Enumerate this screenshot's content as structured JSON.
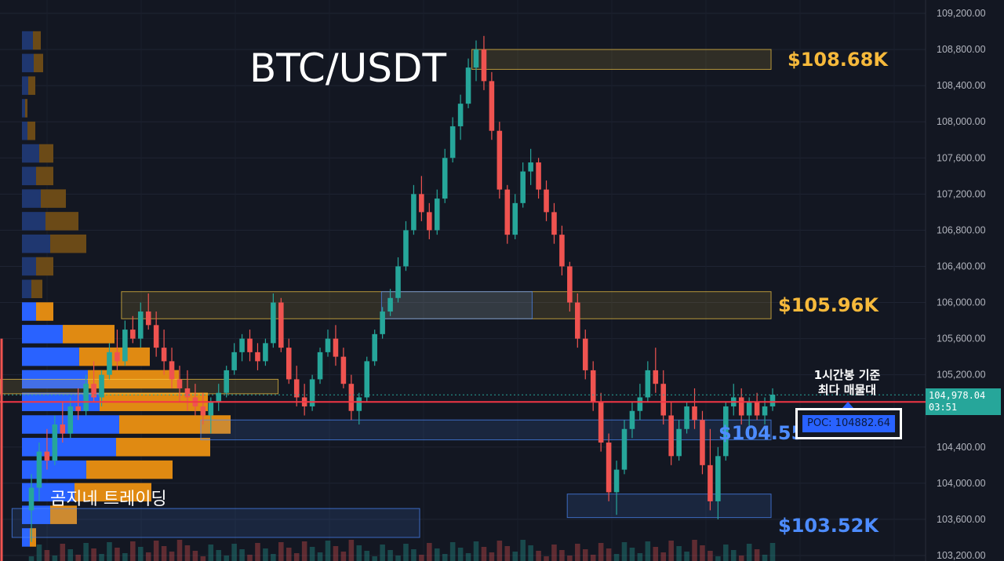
{
  "chart_data": {
    "type": "candlestick",
    "title": "BTC/USDT",
    "symbol": "BTC/USDT",
    "timeframe_note": "1시간봉 기준\n최다 매물대",
    "watermark": "곰지네 트레이딩",
    "y_axis": {
      "min": 103200,
      "max": 109200,
      "ticks": [
        "109,200.00",
        "108,800.00",
        "108,400.00",
        "108,000.00",
        "107,600.00",
        "107,200.00",
        "106,800.00",
        "106,400.00",
        "106,000.00",
        "105,600.00",
        "105,200.00",
        "104,400.00",
        "104,000.00",
        "103,600.00",
        "103,200.00"
      ],
      "tick_values": [
        109200,
        108800,
        108400,
        108000,
        107600,
        107200,
        106800,
        106400,
        106000,
        105600,
        105200,
        104400,
        104000,
        103600,
        103200
      ]
    },
    "current_price": {
      "value": 104978.04,
      "label": "104,978.04",
      "countdown": "03:51",
      "color": "#26a69a"
    },
    "red_line_price": 104900,
    "poc": {
      "label": "POC: 104882.64",
      "value": 104882.64
    },
    "levels": [
      {
        "label": "$108.68K",
        "value": 108680,
        "color": "#f6b93b"
      },
      {
        "label": "$105.96K",
        "value": 105960,
        "color": "#f6b93b"
      },
      {
        "label": "$104.55K",
        "value": 104550,
        "color": "#4d8cff"
      },
      {
        "label": "$103.52K",
        "value": 103520,
        "color": "#4d8cff"
      }
    ],
    "zones": [
      {
        "kind": "supply",
        "top": 108800,
        "bottom": 108580,
        "x_start": 0.47,
        "x_end": 0.768,
        "color": "#f6c945"
      },
      {
        "kind": "supply",
        "top": 106120,
        "bottom": 105820,
        "x_start": 0.121,
        "x_end": 0.768,
        "color": "#f6c945"
      },
      {
        "kind": "demand",
        "top": 106120,
        "bottom": 105820,
        "x_start": 0.38,
        "x_end": 0.53,
        "color": "#4d8cff"
      },
      {
        "kind": "supply",
        "top": 105150,
        "bottom": 104990,
        "x_start": 0.0,
        "x_end": 0.277,
        "color": "#f6c945"
      },
      {
        "kind": "demand",
        "top": 104700,
        "bottom": 104480,
        "x_start": 0.2,
        "x_end": 0.768,
        "color": "#4d8cff"
      },
      {
        "kind": "demand",
        "top": 103880,
        "bottom": 103620,
        "x_start": 0.565,
        "x_end": 0.768,
        "color": "#4d8cff"
      },
      {
        "kind": "demand",
        "top": 103720,
        "bottom": 103400,
        "x_start": 0.012,
        "x_end": 0.418,
        "color": "#4d8cff"
      }
    ],
    "volume_profile": [
      {
        "price": 108900,
        "up": 14,
        "down": 10
      },
      {
        "price": 108650,
        "up": 15,
        "down": 12
      },
      {
        "price": 108400,
        "up": 8,
        "down": 9
      },
      {
        "price": 108150,
        "up": 4,
        "down": 3
      },
      {
        "price": 107900,
        "up": 7,
        "down": 10
      },
      {
        "price": 107650,
        "up": 22,
        "down": 18
      },
      {
        "price": 107400,
        "up": 18,
        "down": 22
      },
      {
        "price": 107150,
        "up": 24,
        "down": 32
      },
      {
        "price": 106900,
        "up": 30,
        "down": 42
      },
      {
        "price": 106650,
        "up": 36,
        "down": 46
      },
      {
        "price": 106400,
        "up": 18,
        "down": 22
      },
      {
        "price": 106150,
        "up": 12,
        "down": 14
      },
      {
        "price": 105900,
        "up": 18,
        "down": 22
      },
      {
        "price": 105650,
        "up": 52,
        "down": 66
      },
      {
        "price": 105400,
        "up": 73,
        "down": 90
      },
      {
        "price": 105150,
        "up": 84,
        "down": 116
      },
      {
        "price": 104900,
        "up": 99,
        "down": 138
      },
      {
        "price": 104650,
        "up": 124,
        "down": 142
      },
      {
        "price": 104400,
        "up": 120,
        "down": 120
      },
      {
        "price": 104150,
        "up": 82,
        "down": 110
      },
      {
        "price": 103900,
        "up": 67,
        "down": 98
      },
      {
        "price": 103650,
        "up": 36,
        "down": 34
      },
      {
        "price": 103400,
        "up": 10,
        "down": 8
      }
    ],
    "volume_profile_colors": {
      "up": "#2962ff",
      "down": "#e08a12",
      "up_faded": "#1f3770",
      "down_faded": "#6b4a17"
    },
    "candle_colors": {
      "up": "#26a69a",
      "down": "#ef5350"
    },
    "candles": [
      [
        103700,
        104100,
        103350,
        103950
      ],
      [
        103950,
        104450,
        103800,
        104350
      ],
      [
        104350,
        104600,
        104150,
        104250
      ],
      [
        104250,
        104750,
        104200,
        104650
      ],
      [
        104650,
        104900,
        104450,
        104550
      ],
      [
        104550,
        104950,
        104500,
        104850
      ],
      [
        104850,
        105050,
        104700,
        104800
      ],
      [
        104800,
        105200,
        104750,
        105100
      ],
      [
        105100,
        105350,
        104900,
        104950
      ],
      [
        104950,
        105250,
        104850,
        105200
      ],
      [
        105200,
        105550,
        105150,
        105450
      ],
      [
        105450,
        105700,
        105250,
        105350
      ],
      [
        105350,
        105800,
        105300,
        105700
      ],
      [
        105700,
        105850,
        105550,
        105600
      ],
      [
        105600,
        106000,
        105500,
        105900
      ],
      [
        105900,
        106100,
        105700,
        105750
      ],
      [
        105750,
        105900,
        105400,
        105500
      ],
      [
        105500,
        105700,
        105200,
        105350
      ],
      [
        105350,
        105500,
        105050,
        105150
      ],
      [
        105150,
        105300,
        104900,
        105050
      ],
      [
        105050,
        105250,
        104800,
        104950
      ],
      [
        104950,
        105100,
        104750,
        104850
      ],
      [
        104850,
        105000,
        104650,
        104750
      ],
      [
        104750,
        104950,
        104550,
        104900
      ],
      [
        104900,
        105100,
        104800,
        105000
      ],
      [
        105000,
        105300,
        104950,
        105250
      ],
      [
        105250,
        105550,
        105200,
        105450
      ],
      [
        105450,
        105650,
        105350,
        105600
      ],
      [
        105600,
        105700,
        105350,
        105450
      ],
      [
        105450,
        105550,
        105250,
        105350
      ],
      [
        105350,
        105600,
        105300,
        105550
      ],
      [
        105550,
        106100,
        105500,
        106000
      ],
      [
        106000,
        106050,
        105450,
        105500
      ],
      [
        105500,
        105600,
        105100,
        105150
      ],
      [
        105150,
        105300,
        104850,
        104950
      ],
      [
        104950,
        105100,
        104750,
        104850
      ],
      [
        104850,
        105200,
        104800,
        105150
      ],
      [
        105150,
        105500,
        105100,
        105450
      ],
      [
        105450,
        105700,
        105400,
        105600
      ],
      [
        105600,
        105750,
        105300,
        105400
      ],
      [
        105400,
        105500,
        105050,
        105100
      ],
      [
        105100,
        105200,
        104700,
        104800
      ],
      [
        104800,
        105000,
        104650,
        104950
      ],
      [
        104950,
        105400,
        104900,
        105350
      ],
      [
        105350,
        105700,
        105300,
        105650
      ],
      [
        105650,
        105950,
        105600,
        105900
      ],
      [
        105900,
        106150,
        105850,
        106050
      ],
      [
        106050,
        106500,
        106000,
        106400
      ],
      [
        106400,
        106900,
        106350,
        106800
      ],
      [
        106800,
        107300,
        106750,
        107200
      ],
      [
        107200,
        107400,
        106900,
        107000
      ],
      [
        107000,
        107100,
        106700,
        106800
      ],
      [
        106800,
        107250,
        106750,
        107150
      ],
      [
        107150,
        107700,
        107100,
        107600
      ],
      [
        107600,
        108050,
        107550,
        107950
      ],
      [
        107950,
        108300,
        107800,
        108200
      ],
      [
        108200,
        108700,
        108150,
        108600
      ],
      [
        108600,
        108900,
        108450,
        108800
      ],
      [
        108800,
        108950,
        108350,
        108450
      ],
      [
        108450,
        108550,
        107800,
        107900
      ],
      [
        107900,
        108000,
        107150,
        107250
      ],
      [
        107250,
        107300,
        106650,
        106750
      ],
      [
        106750,
        107200,
        106700,
        107100
      ],
      [
        107100,
        107550,
        107050,
        107450
      ],
      [
        107450,
        107700,
        107300,
        107550
      ],
      [
        107550,
        107600,
        107150,
        107250
      ],
      [
        107250,
        107350,
        106900,
        107000
      ],
      [
        107000,
        107100,
        106650,
        106750
      ],
      [
        106750,
        106850,
        106300,
        106400
      ],
      [
        106400,
        106450,
        105900,
        106000
      ],
      [
        106000,
        106100,
        105500,
        105600
      ],
      [
        105600,
        105700,
        105150,
        105250
      ],
      [
        105250,
        105350,
        104800,
        104900
      ],
      [
        104900,
        105000,
        104350,
        104450
      ],
      [
        104450,
        104550,
        103800,
        103900
      ],
      [
        103900,
        104250,
        103650,
        104150
      ],
      [
        104150,
        104700,
        104100,
        104600
      ],
      [
        104600,
        104900,
        104500,
        104800
      ],
      [
        104800,
        105100,
        104700,
        104950
      ],
      [
        104950,
        105350,
        104900,
        105250
      ],
      [
        105250,
        105500,
        105000,
        105100
      ],
      [
        105100,
        105250,
        104650,
        104750
      ],
      [
        104750,
        104900,
        104200,
        104300
      ],
      [
        104300,
        104700,
        104250,
        104600
      ],
      [
        104600,
        104900,
        104550,
        104850
      ],
      [
        104850,
        105050,
        104600,
        104700
      ],
      [
        104700,
        104800,
        104100,
        104200
      ],
      [
        104200,
        104600,
        103700,
        103800
      ],
      [
        103800,
        104400,
        103600,
        104300
      ],
      [
        104300,
        104900,
        104250,
        104850
      ],
      [
        104850,
        105100,
        104750,
        104950
      ],
      [
        104950,
        105050,
        104650,
        104750
      ],
      [
        104750,
        104950,
        104600,
        104900
      ],
      [
        104900,
        105000,
        104700,
        104750
      ],
      [
        104750,
        104950,
        104650,
        104850
      ],
      [
        104850,
        105050,
        104800,
        104980
      ]
    ]
  }
}
